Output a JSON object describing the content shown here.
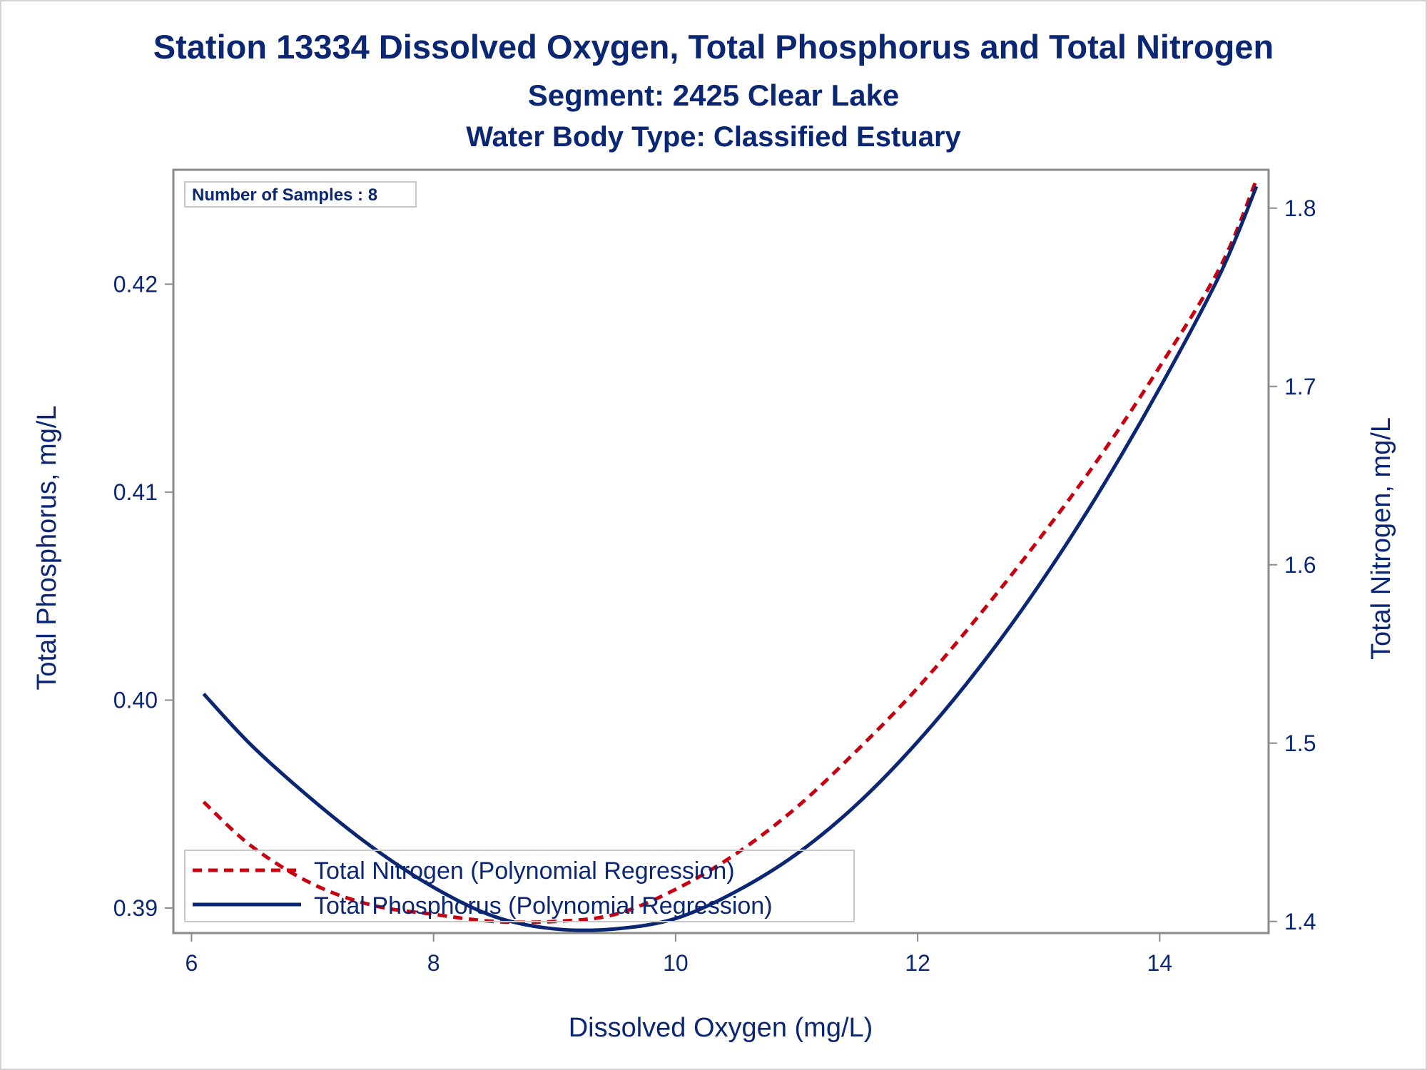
{
  "colors": {
    "text": "#0b2774",
    "phosphorus": "#0b2774",
    "nitrogen": "#c8000f",
    "axis": "#8a8a8a",
    "background": "#ffffff"
  },
  "chart_data": {
    "type": "line",
    "title": "Station 13334  Dissolved Oxygen, Total Phosphorus and Total Nitrogen",
    "subtitle": "Segment: 2425  Clear Lake",
    "subtitle2": "Water Body Type: Classified Estuary",
    "xlabel": "Dissolved Oxygen (mg/L)",
    "ylabel": "Total Phosphorus, mg/L",
    "y2label": "Total Nitrogen, mg/L",
    "xlim": [
      5.85,
      14.9
    ],
    "ylim": [
      0.3888,
      0.4255
    ],
    "y2lim": [
      1.3935,
      1.8215
    ],
    "xticks": [
      6,
      8,
      10,
      12,
      14
    ],
    "xtick_labels": [
      "6",
      "8",
      "10",
      "12",
      "14"
    ],
    "yticks": [
      0.39,
      0.4,
      0.41,
      0.42
    ],
    "ytick_labels": [
      "0.39",
      "0.40",
      "0.41",
      "0.42"
    ],
    "y2ticks": [
      1.4,
      1.5,
      1.6,
      1.7,
      1.8
    ],
    "y2tick_labels": [
      "1.4",
      "1.5",
      "1.6",
      "1.7",
      "1.8"
    ],
    "grid": false,
    "inset_note": "Number of Samples : 8",
    "legend_position": "bottom-left inside",
    "series": [
      {
        "name": "Total Nitrogen (Polynomial Regression)",
        "axis": "right",
        "style": "dashed",
        "color": "#c8000f",
        "x": [
          6.1,
          6.5,
          7.0,
          7.5,
          8.0,
          8.5,
          9.0,
          9.5,
          10.0,
          10.5,
          11.0,
          11.5,
          12.0,
          12.5,
          13.0,
          13.5,
          14.0,
          14.5,
          14.8
        ],
        "y": [
          1.467,
          1.442,
          1.421,
          1.409,
          1.404,
          1.4,
          1.4,
          1.404,
          1.418,
          1.438,
          1.464,
          1.496,
          1.531,
          1.571,
          1.614,
          1.66,
          1.711,
          1.767,
          1.816
        ]
      },
      {
        "name": "Total Phosphorus (Polynomial Regression)",
        "axis": "left",
        "style": "solid",
        "color": "#0b2774",
        "x": [
          6.1,
          6.5,
          7.0,
          7.5,
          8.0,
          8.5,
          9.0,
          9.5,
          10.0,
          10.5,
          11.0,
          11.5,
          12.0,
          12.5,
          13.0,
          13.5,
          14.0,
          14.5,
          14.8
        ],
        "y": [
          0.4003,
          0.3978,
          0.3952,
          0.3929,
          0.391,
          0.3896,
          0.389,
          0.389,
          0.3895,
          0.3908,
          0.3926,
          0.395,
          0.398,
          0.4015,
          0.4055,
          0.41,
          0.415,
          0.4205,
          0.4247
        ]
      }
    ]
  }
}
